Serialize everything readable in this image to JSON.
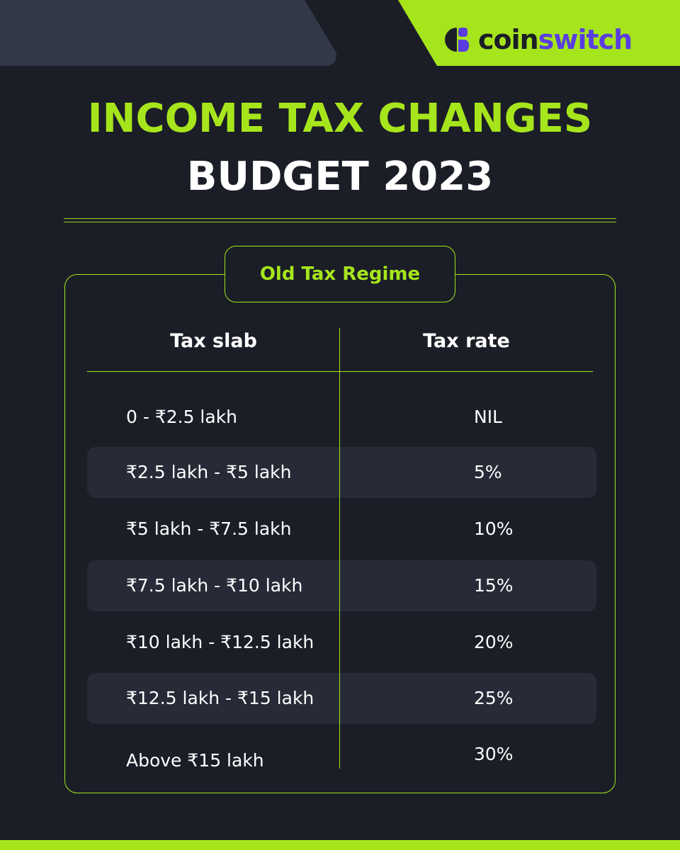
{
  "brand": {
    "prefix": "coin",
    "suffix": "switch",
    "logo_icon": "coinswitch-logo-icon"
  },
  "title": {
    "line1": "INCOME TAX CHANGES",
    "line2": "BUDGET 2023"
  },
  "regime_label": "Old Tax Regime",
  "table": {
    "headers": [
      "Tax slab",
      "Tax rate"
    ],
    "rows": [
      {
        "slab": "0 - ₹2.5 lakh",
        "rate": "NIL"
      },
      {
        "slab": "₹2.5 lakh - ₹5 lakh",
        "rate": "5%"
      },
      {
        "slab": "₹5 lakh - ₹7.5 lakh",
        "rate": "10%"
      },
      {
        "slab": "₹7.5 lakh - ₹10 lakh",
        "rate": "15%"
      },
      {
        "slab": "₹10 lakh - ₹12.5 lakh",
        "rate": "20%"
      },
      {
        "slab": "₹12.5 lakh - ₹15 lakh",
        "rate": "25%"
      },
      {
        "slab": "Above ₹15 lakh",
        "rate": "30%"
      }
    ]
  },
  "colors": {
    "accent": "#a6e51c",
    "background": "#1b1e27",
    "row_shade": "#272b37",
    "brand_purple": "#5a3ee0"
  }
}
